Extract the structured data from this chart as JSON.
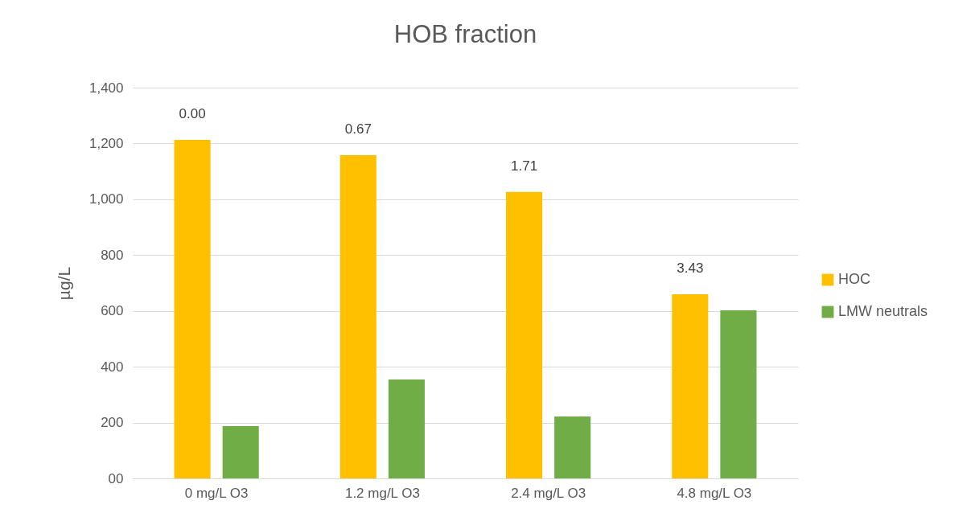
{
  "chart_data": {
    "type": "bar",
    "title": "HOB fraction",
    "ylabel": "µg/L",
    "categories": [
      "0 mg/L O3",
      "1.2 mg/L O3",
      "2.4 mg/L O3",
      "4.8 mg/L O3"
    ],
    "series": [
      {
        "name": "HOC",
        "color": "#ffc000",
        "values": [
          1213,
          1158,
          1026,
          660
        ]
      },
      {
        "name": "LMW neutrals",
        "color": "#70ad47",
        "values": [
          187,
          354,
          222,
          602
        ]
      }
    ],
    "ylim": [
      0,
      1400
    ],
    "yticks": [
      {
        "value": 0,
        "label": "00"
      },
      {
        "value": 200,
        "label": "200"
      },
      {
        "value": 400,
        "label": "400"
      },
      {
        "value": 600,
        "label": "600"
      },
      {
        "value": 800,
        "label": "800"
      },
      {
        "value": 1000,
        "label": "1,000"
      },
      {
        "value": 1200,
        "label": "1,200"
      },
      {
        "value": 1400,
        "label": "1,400"
      }
    ],
    "annotations": [
      "0.00",
      "0.67",
      "1.71",
      "3.43"
    ],
    "grid": "y",
    "legend": "right"
  }
}
